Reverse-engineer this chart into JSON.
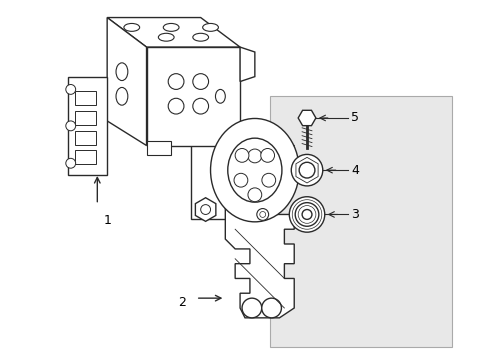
{
  "bg_color": "#ffffff",
  "panel_color": "#e8e8e8",
  "line_color": "#2a2a2a",
  "label_color": "#000000",
  "lw": 1.0,
  "figsize": [
    4.9,
    3.6
  ],
  "dpi": 100
}
